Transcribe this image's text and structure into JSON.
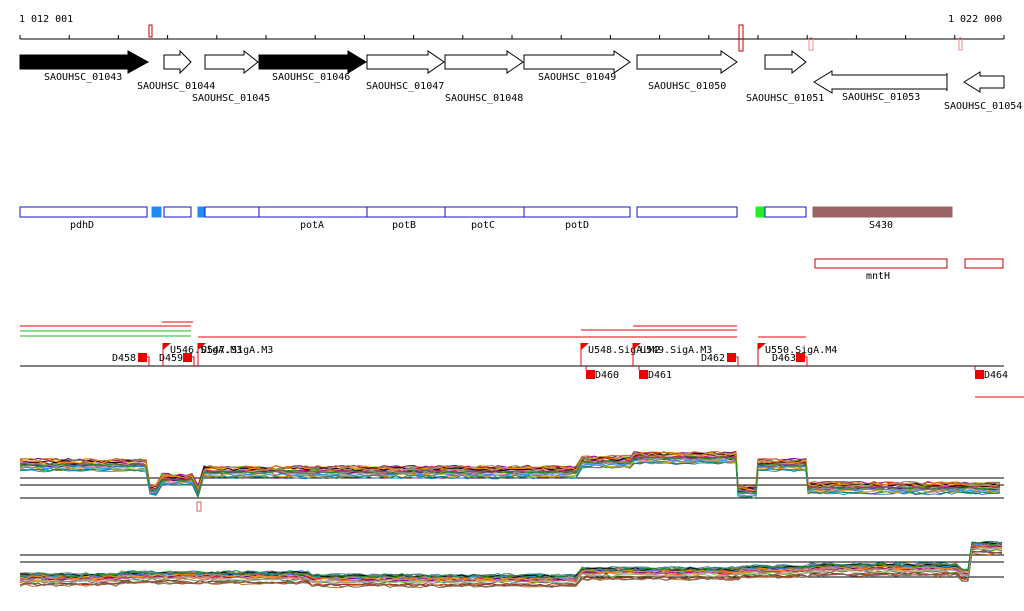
{
  "ruler": {
    "start_label": "1 012 001",
    "end_label": "1 022 000"
  },
  "colors": {
    "gene_fill_highlight": "#000000",
    "feature_blue": "#1515c8",
    "feature_fill_cyan": "#1e8cf0",
    "feature_fill_green": "#22ee22",
    "feature_fill_brown": "#9a6464",
    "red": "#e00000",
    "green": "#22bb22"
  },
  "genes": [
    {
      "label": "SAOUHSC_01043",
      "strand": "+",
      "filled": true
    },
    {
      "label": "SAOUHSC_01044",
      "strand": "+",
      "filled": false
    },
    {
      "label": "SAOUHSC_01045",
      "strand": "+",
      "filled": false
    },
    {
      "label": "SAOUHSC_01046",
      "strand": "+",
      "filled": true
    },
    {
      "label": "SAOUHSC_01047",
      "strand": "+",
      "filled": false
    },
    {
      "label": "SAOUHSC_01048",
      "strand": "+",
      "filled": false
    },
    {
      "label": "SAOUHSC_01049",
      "strand": "+",
      "filled": false
    },
    {
      "label": "SAOUHSC_01050",
      "strand": "+",
      "filled": false
    },
    {
      "label": "SAOUHSC_01051",
      "strand": "+",
      "filled": false
    },
    {
      "label": "SAOUHSC_01053",
      "strand": "-",
      "filled": false
    },
    {
      "label": "SAOUHSC_01054",
      "strand": "-",
      "filled": false
    }
  ],
  "annotations": [
    {
      "label": "pdhD"
    },
    {
      "label": "potA"
    },
    {
      "label": "potB"
    },
    {
      "label": "potC"
    },
    {
      "label": "potD"
    },
    {
      "label": "S430"
    },
    {
      "label": "mntH"
    }
  ],
  "promoters": [
    {
      "label": "U546.SigA.M3"
    },
    {
      "label": "U547.SigA.M3"
    },
    {
      "label": "U548.SigA.M2"
    },
    {
      "label": "U549.SigA.M3"
    },
    {
      "label": "U550.SigA.M4"
    }
  ],
  "terminators": [
    {
      "label": "D458"
    },
    {
      "label": "D459"
    },
    {
      "label": "D460"
    },
    {
      "label": "D461"
    },
    {
      "label": "D462"
    },
    {
      "label": "D463"
    },
    {
      "label": "D464"
    }
  ]
}
